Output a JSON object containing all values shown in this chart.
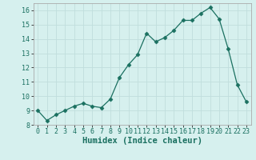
{
  "x": [
    0,
    1,
    2,
    3,
    4,
    5,
    6,
    7,
    8,
    9,
    10,
    11,
    12,
    13,
    14,
    15,
    16,
    17,
    18,
    19,
    20,
    21,
    22,
    23
  ],
  "y": [
    9.0,
    8.3,
    8.7,
    9.0,
    9.3,
    9.5,
    9.3,
    9.2,
    9.8,
    11.3,
    12.2,
    12.9,
    14.4,
    13.8,
    14.1,
    14.6,
    15.3,
    15.3,
    15.8,
    16.2,
    15.4,
    13.3,
    10.8,
    9.6
  ],
  "line_color": "#1a7060",
  "marker": "D",
  "marker_size": 2.5,
  "xlabel": "Humidex (Indice chaleur)",
  "ylim": [
    8,
    16.5
  ],
  "xlim": [
    -0.5,
    23.5
  ],
  "yticks": [
    8,
    9,
    10,
    11,
    12,
    13,
    14,
    15,
    16
  ],
  "xticks": [
    0,
    1,
    2,
    3,
    4,
    5,
    6,
    7,
    8,
    9,
    10,
    11,
    12,
    13,
    14,
    15,
    16,
    17,
    18,
    19,
    20,
    21,
    22,
    23
  ],
  "bg_color": "#d6f0ee",
  "grid_color": "#c0dedd",
  "tick_label_size": 6,
  "xlabel_size": 7.5,
  "xlabel_fontweight": "bold"
}
